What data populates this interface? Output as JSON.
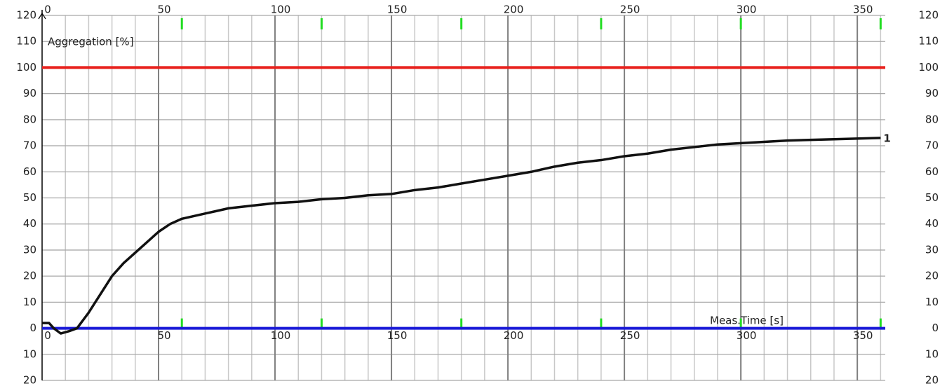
{
  "chart_data": {
    "type": "line",
    "y_label": "Aggregation [%]",
    "x_label": "Meas.Time [s]",
    "xlim": [
      0,
      362
    ],
    "ylim": [
      -20,
      120
    ],
    "xticks": [
      0,
      50,
      100,
      150,
      200,
      250,
      300,
      350
    ],
    "yticks": [
      120,
      110,
      100,
      90,
      80,
      70,
      60,
      50,
      40,
      30,
      20,
      10,
      0,
      {
        "value": -10,
        "label": "10"
      },
      {
        "value": -20,
        "label": "20"
      }
    ],
    "grid": true,
    "minor_grid_step": 10,
    "marker_ticks": [
      60,
      120,
      180,
      240,
      300,
      360
    ],
    "marker_color": "#22dd22",
    "reference_lines": [
      {
        "value": 100,
        "color": "#e8201c"
      },
      {
        "value": 0,
        "color": "#1a1ad8"
      }
    ],
    "series": [
      {
        "name": "1",
        "color": "#111111",
        "x": [
          0,
          3,
          5,
          8,
          12,
          15,
          20,
          25,
          30,
          35,
          40,
          45,
          50,
          55,
          60,
          65,
          70,
          75,
          80,
          90,
          100,
          110,
          120,
          130,
          140,
          150,
          160,
          170,
          180,
          190,
          200,
          210,
          220,
          230,
          240,
          250,
          260,
          270,
          280,
          290,
          300,
          320,
          340,
          360
        ],
        "values": [
          2,
          2,
          0,
          -2,
          -1,
          0,
          6,
          13,
          20,
          25,
          29,
          33,
          37,
          40,
          42,
          43,
          44,
          45,
          46,
          47,
          48,
          48.5,
          49.5,
          50,
          51,
          51.5,
          53,
          54,
          55.5,
          57,
          58.5,
          60,
          62,
          63.5,
          64.5,
          66,
          67,
          68.5,
          69.5,
          70.5,
          71,
          72,
          72.5,
          73
        ]
      }
    ]
  }
}
